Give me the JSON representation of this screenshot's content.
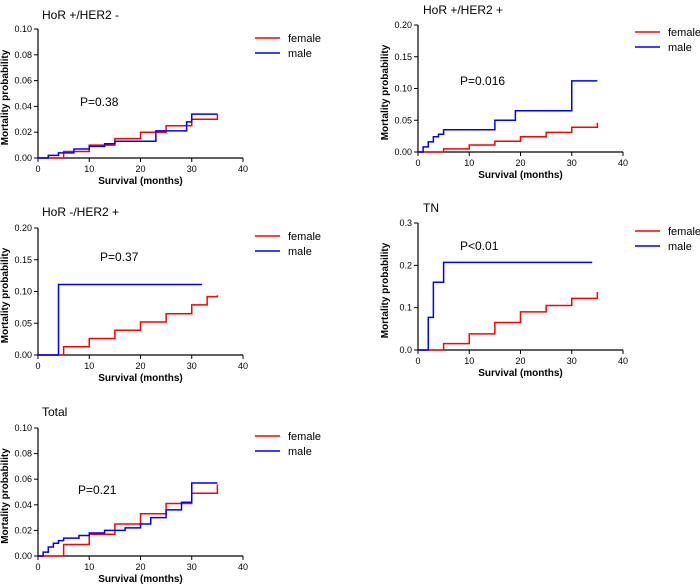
{
  "chart_data": [
    {
      "type": "line",
      "title": "HoR +/HER2 -",
      "xlabel": "Survival (months)",
      "ylabel": "Mortality probability",
      "xlim": [
        0,
        40
      ],
      "ylim": [
        0,
        0.1
      ],
      "xticks": [
        "0",
        "10",
        "20",
        "30",
        "40"
      ],
      "yticks": [
        "0.00",
        "0.02",
        "0.04",
        "0.06",
        "0.08",
        "0.10"
      ],
      "annotation": "P=0.38",
      "legend": [
        "female",
        "male"
      ],
      "series": [
        {
          "name": "female",
          "color": "#ff0000",
          "step": true,
          "x": [
            0,
            5,
            10,
            15,
            20,
            25,
            30,
            35
          ],
          "y": [
            0,
            0.005,
            0.01,
            0.015,
            0.02,
            0.025,
            0.03,
            0.034
          ]
        },
        {
          "name": "male",
          "color": "#0000ff",
          "step": true,
          "x": [
            0,
            2,
            4,
            7,
            10,
            13,
            15,
            18,
            23,
            25,
            29,
            30,
            35
          ],
          "y": [
            0,
            0.002,
            0.004,
            0.007,
            0.009,
            0.011,
            0.013,
            0.013,
            0.021,
            0.021,
            0.028,
            0.034,
            0.034
          ]
        }
      ]
    },
    {
      "type": "line",
      "title": "HoR +/HER2 +",
      "xlabel": "Survival (months)",
      "ylabel": "Mortality probability",
      "xlim": [
        0,
        40
      ],
      "ylim": [
        0,
        0.2
      ],
      "xticks": [
        "0",
        "10",
        "20",
        "30",
        "40"
      ],
      "yticks": [
        "0.00",
        "0.05",
        "0.10",
        "0.15",
        "0.20"
      ],
      "annotation": "P=0.016",
      "legend": [
        "female",
        "male"
      ],
      "series": [
        {
          "name": "female",
          "color": "#ff0000",
          "step": true,
          "x": [
            0,
            5,
            10,
            15,
            20,
            25,
            30,
            35
          ],
          "y": [
            0,
            0.005,
            0.011,
            0.017,
            0.024,
            0.031,
            0.039,
            0.046
          ]
        },
        {
          "name": "male",
          "color": "#0000ff",
          "step": true,
          "x": [
            0,
            1,
            2,
            3,
            4,
            5,
            15,
            19,
            30,
            35
          ],
          "y": [
            0,
            0.008,
            0.016,
            0.024,
            0.028,
            0.035,
            0.05,
            0.065,
            0.112,
            0.112
          ]
        }
      ]
    },
    {
      "type": "line",
      "title": "HoR -/HER2 +",
      "xlabel": "Survival (months)",
      "ylabel": "Mortality probability",
      "xlim": [
        0,
        40
      ],
      "ylim": [
        0,
        0.2
      ],
      "xticks": [
        "0",
        "10",
        "20",
        "30",
        "40"
      ],
      "yticks": [
        "0.00",
        "0.05",
        "0.10",
        "0.15",
        "0.20"
      ],
      "annotation": "P=0.37",
      "legend": [
        "female",
        "male"
      ],
      "series": [
        {
          "name": "female",
          "color": "#ff0000",
          "step": true,
          "x": [
            0,
            5,
            10,
            15,
            20,
            25,
            30,
            33,
            35
          ],
          "y": [
            0,
            0.013,
            0.026,
            0.039,
            0.052,
            0.065,
            0.079,
            0.092,
            0.094
          ]
        },
        {
          "name": "male",
          "color": "#0000ff",
          "step": true,
          "x": [
            0,
            4,
            32
          ],
          "y": [
            0,
            0.111,
            0.111
          ]
        }
      ]
    },
    {
      "type": "line",
      "title": "TN",
      "xlabel": "Survival (months)",
      "ylabel": "Mortality probability",
      "xlim": [
        0,
        40
      ],
      "ylim": [
        0,
        0.3
      ],
      "xticks": [
        "0",
        "10",
        "20",
        "30",
        "40"
      ],
      "yticks": [
        "0.0",
        "0.1",
        "0.2",
        "0.3"
      ],
      "annotation": "P<0.01",
      "legend": [
        "female",
        "male"
      ],
      "series": [
        {
          "name": "female",
          "color": "#ff0000",
          "step": true,
          "x": [
            0,
            5,
            10,
            15,
            20,
            25,
            30,
            35
          ],
          "y": [
            0,
            0.015,
            0.038,
            0.065,
            0.09,
            0.105,
            0.122,
            0.137
          ]
        },
        {
          "name": "male",
          "color": "#0000ff",
          "step": true,
          "x": [
            0,
            2,
            3,
            5,
            34
          ],
          "y": [
            0,
            0.077,
            0.16,
            0.207,
            0.207
          ]
        }
      ]
    },
    {
      "type": "line",
      "title": "Total",
      "xlabel": "Survival (months)",
      "ylabel": "Mortality probability",
      "xlim": [
        0,
        40
      ],
      "ylim": [
        0,
        0.1
      ],
      "xticks": [
        "0",
        "10",
        "20",
        "30",
        "40"
      ],
      "yticks": [
        "0.00",
        "0.02",
        "0.04",
        "0.06",
        "0.08",
        "0.10"
      ],
      "annotation": "P=0.21",
      "legend": [
        "female",
        "male"
      ],
      "series": [
        {
          "name": "female",
          "color": "#ff0000",
          "step": true,
          "x": [
            0,
            5,
            10,
            15,
            20,
            25,
            30,
            35
          ],
          "y": [
            0,
            0.009,
            0.017,
            0.025,
            0.033,
            0.041,
            0.049,
            0.056
          ]
        },
        {
          "name": "male",
          "color": "#0000ff",
          "step": true,
          "x": [
            0,
            1,
            2,
            3,
            4,
            5,
            8,
            10,
            13,
            17,
            20,
            22,
            25,
            28,
            30,
            35
          ],
          "y": [
            0,
            0.003,
            0.007,
            0.01,
            0.012,
            0.014,
            0.016,
            0.018,
            0.02,
            0.022,
            0.025,
            0.03,
            0.036,
            0.042,
            0.057,
            0.057
          ]
        }
      ]
    }
  ]
}
